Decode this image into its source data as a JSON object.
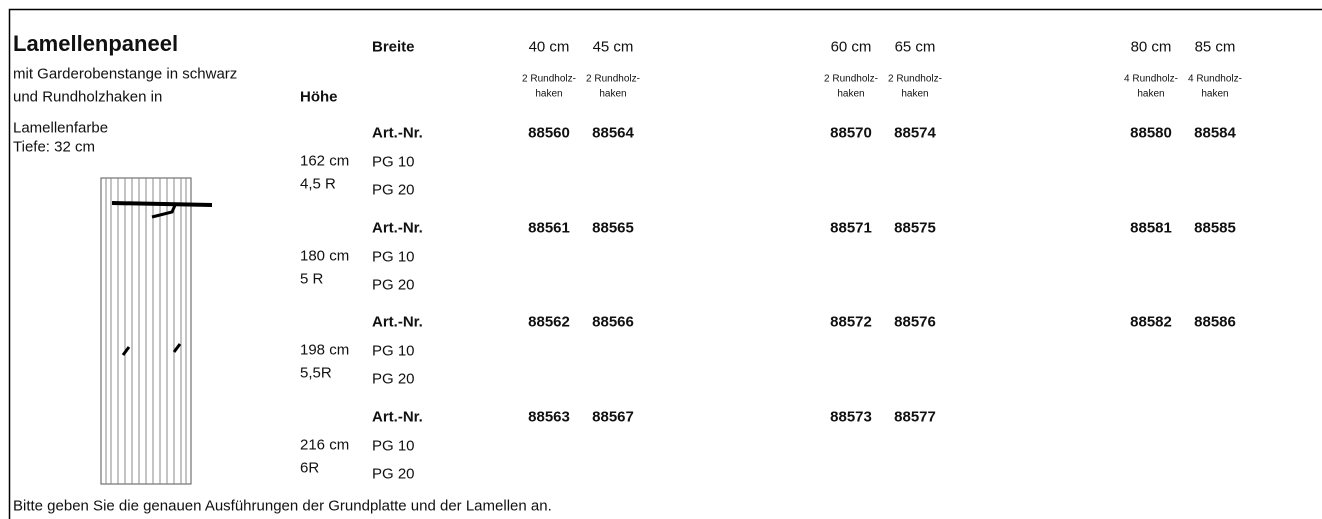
{
  "product": {
    "title": "Lamellenpaneel",
    "description": [
      "mit Garderobenstange in schwarz",
      "und Rundholzhaken in",
      "Lamellenfarbe",
      "Tiefe: 32 cm"
    ]
  },
  "table": {
    "width_header": "Breite",
    "height_header": "Höhe",
    "columns": [
      {
        "width": "40 cm",
        "hooks": [
          "2 Rundholz-",
          "haken"
        ]
      },
      {
        "width": "45 cm",
        "hooks": [
          "2 Rundholz-",
          "haken"
        ]
      },
      {
        "width": "60 cm",
        "hooks": [
          "2 Rundholz-",
          "haken"
        ]
      },
      {
        "width": "65 cm",
        "hooks": [
          "2 Rundholz-",
          "haken"
        ]
      },
      {
        "width": "80 cm",
        "hooks": [
          "4 Rundholz-",
          "haken"
        ]
      },
      {
        "width": "85 cm",
        "hooks": [
          "4 Rundholz-",
          "haken"
        ]
      }
    ],
    "rows": [
      {
        "height": "162 cm",
        "size": "4,5 R",
        "label": "Art.-Nr.",
        "groups": [
          "PG 10",
          "PG 20"
        ],
        "numbers": [
          "88560",
          "88564",
          "88570",
          "88574",
          "88580",
          "88584"
        ]
      },
      {
        "height": "180 cm",
        "size": "5 R",
        "label": "Art.-Nr.",
        "groups": [
          "PG 10",
          "PG 20"
        ],
        "numbers": [
          "88561",
          "88565",
          "88571",
          "88575",
          "88581",
          "88585"
        ]
      },
      {
        "height": "198 cm",
        "size": "5,5R",
        "label": "Art.-Nr.",
        "groups": [
          "PG 10",
          "PG 20"
        ],
        "numbers": [
          "88562",
          "88566",
          "88572",
          "88576",
          "88582",
          "88586"
        ]
      },
      {
        "height": "216 cm",
        "size": "6R",
        "label": "Art.-Nr.",
        "groups": [
          "PG 10",
          "PG 20"
        ],
        "numbers": [
          "88563",
          "88567",
          "88573",
          "88577"
        ]
      }
    ]
  },
  "note": "Bitte geben Sie die genauen Ausführungen der Grundplatte und der Lamellen an."
}
